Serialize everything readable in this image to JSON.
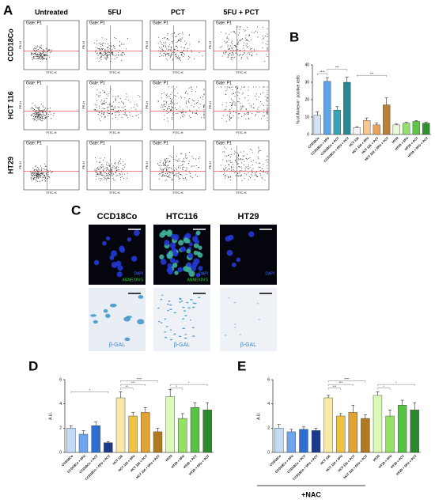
{
  "panel_a": {
    "label": "A",
    "columns": [
      "Untreated",
      "5FU",
      "PCT",
      "5FU + PCT"
    ],
    "rows": [
      "CCD18Co",
      "HCT 116",
      "HT29"
    ],
    "gate": "Gate: P1",
    "x_axis": "FITC-H",
    "y_axis": "PE-H"
  },
  "panel_c": {
    "label": "C",
    "columns": [
      "CCD18Co",
      "HTC116",
      "HT29"
    ],
    "dapi": "DAPI",
    "annexin": "ANNEXIN 5",
    "bgal": "β-GAL"
  },
  "chart_data": [
    {
      "type": "bar",
      "panel": "B",
      "ylabel": "% of Annexin⁺ positive cells",
      "categories": [
        "CCD18Co",
        "CCD18Co + 5FU",
        "CCD18Co + PCT",
        "CCD18Co + 5FU + PCT",
        "HCT 116",
        "HCT 116 + 5FU",
        "HCT 116 + PCT",
        "HCT 116 + 5FU + PCT",
        "HT29",
        "HT29 + 5FU",
        "HT29 + PCT",
        "HT29 + 5FU + PCT"
      ],
      "values": [
        11,
        30.5,
        14,
        30,
        4,
        8,
        5.5,
        17,
        5.5,
        6.5,
        7.5,
        6.5
      ],
      "errors": [
        2,
        2,
        2,
        3,
        0.5,
        1.5,
        1,
        4,
        0.5,
        0.5,
        0.5,
        0.5
      ],
      "colors": [
        "#d6e2f5",
        "#5aa6ec",
        "#3aa3b5",
        "#2b8792",
        "#f4f4f4",
        "#f6c78e",
        "#eaa45c",
        "#b9803a",
        "#eaf8d8",
        "#93e06a",
        "#5fc546",
        "#2f8f2f"
      ],
      "ylim": [
        0,
        40
      ],
      "yticks": [
        0,
        10,
        20,
        30,
        40
      ],
      "annotations": [
        "****",
        "***",
        "***"
      ]
    },
    {
      "type": "bar",
      "panel": "D",
      "ylabel": "A.U.",
      "categories": [
        "CCD18Co",
        "CCD18Co + 5FU",
        "CCD18Co + PCT",
        "CCD18Co + 5FU + PCT",
        "HCT 116",
        "HCT 116 + 5FU",
        "HCT 116 + PCT",
        "HCT 116 + 5FU + PCT",
        "HT29",
        "HT29 + 5FU",
        "HT29 + PCT",
        "HT29 + 5FU + PCT"
      ],
      "values": [
        2.0,
        1.5,
        2.2,
        0.8,
        4.5,
        3.0,
        3.3,
        1.7,
        4.6,
        2.8,
        3.7,
        3.5
      ],
      "errors": [
        0.2,
        0.3,
        0.3,
        0.1,
        0.5,
        0.3,
        0.4,
        0.3,
        0.6,
        0.4,
        0.4,
        0.6
      ],
      "colors": [
        "#c4dbf8",
        "#6fa5ef",
        "#2f6fd0",
        "#1b3a8c",
        "#f8eaa6",
        "#f0c244",
        "#e0a232",
        "#b07a22",
        "#dcf8b8",
        "#93e064",
        "#55c444",
        "#2c8a2c"
      ],
      "ylim": [
        0,
        6
      ],
      "yticks": [
        0,
        2,
        4,
        6
      ],
      "annotations": [
        "*",
        "****",
        "***",
        "**",
        "*",
        "*"
      ]
    },
    {
      "type": "bar",
      "panel": "E",
      "ylabel": "A.U.",
      "note": "+NAC",
      "categories": [
        "CCD18Co",
        "CCD18Co + 5FU",
        "CCD18Co + PCT",
        "CCD18Co + 5FU + PCT",
        "HCT 116",
        "HCT 116 + 5FU",
        "HCT 116 + PCT",
        "HCT 116 + 5FU + PCT",
        "HT29",
        "HT29 + 5FU",
        "HT29 + PCT",
        "HT29 + 5FU + PCT"
      ],
      "values": [
        2.0,
        1.7,
        1.9,
        1.8,
        4.5,
        3.0,
        3.3,
        2.8,
        4.7,
        3.0,
        3.9,
        3.5
      ],
      "errors": [
        0.3,
        0.2,
        0.2,
        0.2,
        0.2,
        0.2,
        0.6,
        0.3,
        0.3,
        0.5,
        0.4,
        0.6
      ],
      "colors": [
        "#c4dbf8",
        "#6fa5ef",
        "#2f6fd0",
        "#1b3a8c",
        "#f8eaa6",
        "#f0c244",
        "#e0a232",
        "#b07a22",
        "#dcf8b8",
        "#93e064",
        "#55c444",
        "#2c8a2c"
      ],
      "ylim": [
        0,
        6
      ],
      "yticks": [
        0,
        2,
        4,
        6
      ],
      "annotations": [
        "****",
        "***",
        "***",
        "*",
        "*"
      ]
    }
  ]
}
